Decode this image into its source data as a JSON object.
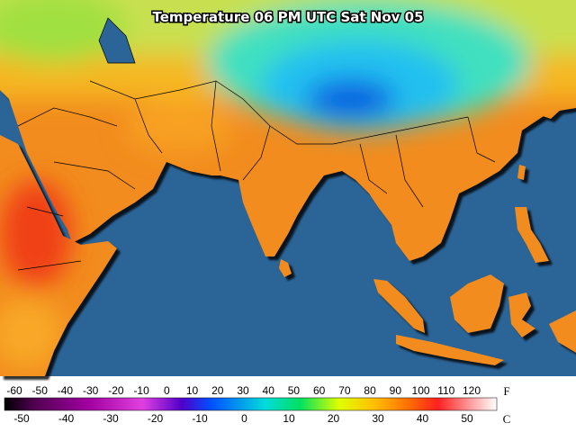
{
  "title": "Temperature 06 PM UTC Sat Nov 05",
  "legend": {
    "fahrenheit": {
      "unit": "F",
      "labels": [
        -60,
        -50,
        -40,
        -30,
        -20,
        -10,
        0,
        10,
        20,
        30,
        40,
        50,
        60,
        70,
        80,
        90,
        100,
        110,
        120
      ]
    },
    "celsius": {
      "unit": "C",
      "labels": [
        -50,
        -40,
        -30,
        -20,
        -10,
        0,
        10,
        20,
        30,
        40,
        50
      ]
    }
  }
}
